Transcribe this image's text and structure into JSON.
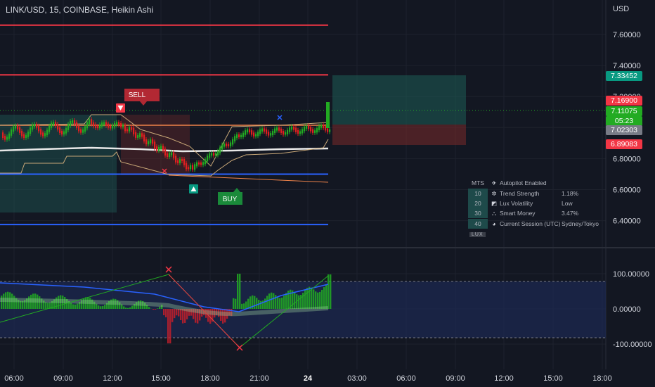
{
  "header": {
    "title": "LINK/USD, 15, COINBASE, Heikin Ashi"
  },
  "price_axis": {
    "currency": "USD",
    "ticks": [
      "7.60000",
      "7.40000",
      "7.20000",
      "7.00000",
      "6.80000",
      "6.60000",
      "6.40000"
    ],
    "ticks_values": [
      7.6,
      7.4,
      7.2,
      7.0,
      6.8,
      6.6,
      6.4
    ],
    "tags": [
      {
        "label": "7.33452",
        "color": "#089981"
      },
      {
        "label": "7.16900",
        "color": "#f23645"
      },
      {
        "label": "7.11075",
        "color": "#22ab22"
      },
      {
        "label": "05:23",
        "color": "#22ab22"
      },
      {
        "label": "7.02303",
        "color": "#787b86"
      },
      {
        "label": "6.89083",
        "color": "#f23645"
      }
    ]
  },
  "osc_axis": {
    "ticks": [
      "100.00000",
      "0.00000",
      "-100.00000"
    ]
  },
  "time_axis": {
    "ticks": [
      "06:00",
      "09:00",
      "12:00",
      "15:00",
      "18:00",
      "21:00",
      "24",
      "03:00",
      "06:00",
      "09:00",
      "12:00",
      "15:00",
      "18:00"
    ]
  },
  "signals": {
    "sell_label": "SELL",
    "buy_label": "BUY"
  },
  "dashboard": {
    "header": "MTS",
    "rows": [
      {
        "num": "",
        "icon": "✈",
        "label": "Autopilot Enabled",
        "value": ""
      },
      {
        "num": "10",
        "icon": "✲",
        "label": "Trend Strength",
        "value": "1.18%"
      },
      {
        "num": "20",
        "icon": "◩",
        "label": "Lux Volatility",
        "value": "Low"
      },
      {
        "num": "30",
        "icon": "⛬",
        "label": "Smart Money",
        "value": "3.47%"
      },
      {
        "num": "40",
        "icon": "◕",
        "label": "Current Session (UTC)",
        "value": "Sydney/Tokyo"
      }
    ],
    "brand": "LUX"
  },
  "colors": {
    "bg": "#131722",
    "up": "#22ab22",
    "down": "#e02020",
    "grid": "#1e222d"
  },
  "chart_data": {
    "type": "candlestick",
    "symbol": "LINK/USD",
    "interval": "15",
    "price_range": [
      6.28,
      7.7
    ],
    "levels": [
      {
        "price": 7.66,
        "color": "#f23645"
      },
      {
        "price": 7.34,
        "color": "#f23645"
      },
      {
        "price": 6.7,
        "color": "#2962ff"
      },
      {
        "price": 6.375,
        "color": "#2962ff"
      }
    ],
    "last_price": 7.11075,
    "oscillator_range": [
      -100,
      100
    ]
  }
}
